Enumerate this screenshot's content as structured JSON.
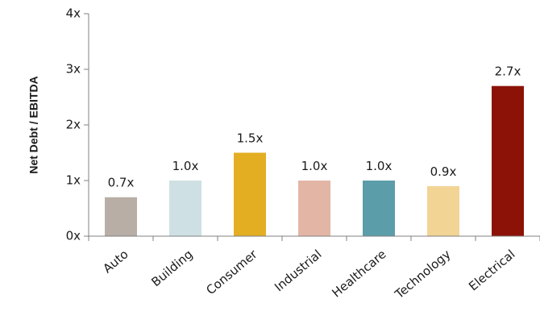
{
  "chart_data": {
    "type": "bar",
    "ylabel": "Net Debt / EBITDA",
    "xlabel": "",
    "ylim": [
      0,
      4
    ],
    "yticks": [
      0,
      1,
      2,
      3,
      4
    ],
    "ytick_labels": [
      "0x",
      "1x",
      "2x",
      "3x",
      "4x"
    ],
    "grid": false,
    "categories": [
      "Auto",
      "Building",
      "Consumer",
      "Industrial",
      "Healthcare",
      "Technology",
      "Electrical"
    ],
    "values": [
      0.7,
      1.0,
      1.5,
      1.0,
      1.0,
      0.9,
      2.7
    ],
    "data_labels": [
      "0.7x",
      "1.0x",
      "1.5x",
      "1.0x",
      "1.0x",
      "0.9x",
      "2.7x"
    ],
    "colors": [
      "#b8aea5",
      "#cfe0e4",
      "#e3ae22",
      "#e3b5a5",
      "#5b9ea9",
      "#f2d495",
      "#8c1208"
    ]
  }
}
